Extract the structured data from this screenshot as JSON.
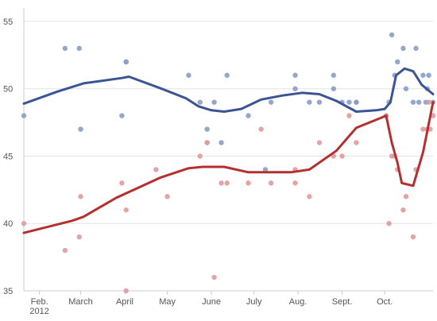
{
  "chart_data": {
    "type": "scatter",
    "title": "",
    "xlabel": "",
    "ylabel": "",
    "ylim": [
      35,
      56
    ],
    "xlim": [
      "2012-01-21",
      "2012-11-04"
    ],
    "grid": true,
    "legend": "none",
    "y_ticks": [
      "35",
      "40",
      "45",
      "50",
      "55"
    ],
    "x_ticks": [
      {
        "date": "2012-02-01",
        "label": "Feb.",
        "sub": "2012"
      },
      {
        "date": "2012-03-01",
        "label": "March",
        "sub": ""
      },
      {
        "date": "2012-04-01",
        "label": "April",
        "sub": ""
      },
      {
        "date": "2012-05-01",
        "label": "May",
        "sub": ""
      },
      {
        "date": "2012-06-01",
        "label": "June",
        "sub": ""
      },
      {
        "date": "2012-07-01",
        "label": "July",
        "sub": ""
      },
      {
        "date": "2012-08-01",
        "label": "Aug.",
        "sub": ""
      },
      {
        "date": "2012-09-01",
        "label": "Sept.",
        "sub": ""
      },
      {
        "date": "2012-10-01",
        "label": "Oct.",
        "sub": ""
      }
    ],
    "series": [
      {
        "color": "#3a5496",
        "point_color": "#8a9cc9",
        "trend": [
          [
            "2012-01-21",
            48.9
          ],
          [
            "2012-02-14",
            49.8
          ],
          [
            "2012-03-03",
            50.4
          ],
          [
            "2012-03-30",
            50.8
          ],
          [
            "2012-04-04",
            50.9
          ],
          [
            "2012-04-27",
            50.0
          ],
          [
            "2012-05-14",
            49.3
          ],
          [
            "2012-05-23",
            48.7
          ],
          [
            "2012-06-01",
            48.4
          ],
          [
            "2012-06-10",
            48.3
          ],
          [
            "2012-06-22",
            48.5
          ],
          [
            "2012-07-06",
            49.2
          ],
          [
            "2012-07-21",
            49.5
          ],
          [
            "2012-08-04",
            49.7
          ],
          [
            "2012-08-16",
            49.6
          ],
          [
            "2012-08-28",
            49.1
          ],
          [
            "2012-09-11",
            48.3
          ],
          [
            "2012-09-25",
            48.4
          ],
          [
            "2012-10-01",
            48.5
          ],
          [
            "2012-10-05",
            49.0
          ],
          [
            "2012-10-09",
            51.0
          ],
          [
            "2012-10-15",
            51.5
          ],
          [
            "2012-10-21",
            51.3
          ],
          [
            "2012-10-27",
            50.3
          ],
          [
            "2012-11-04",
            49.6
          ]
        ],
        "points": [
          [
            "2012-01-21",
            48
          ],
          [
            "2012-02-19",
            53
          ],
          [
            "2012-03-01",
            47
          ],
          [
            "2012-02-29",
            53
          ],
          [
            "2012-03-30",
            48
          ],
          [
            "2012-04-02",
            52
          ],
          [
            "2012-04-02",
            52
          ],
          [
            "2012-05-16",
            51
          ],
          [
            "2012-05-24",
            49
          ],
          [
            "2012-05-29",
            46
          ],
          [
            "2012-05-29",
            47
          ],
          [
            "2012-06-03",
            49
          ],
          [
            "2012-06-08",
            46
          ],
          [
            "2012-06-12",
            51
          ],
          [
            "2012-06-27",
            48
          ],
          [
            "2012-07-09",
            44
          ],
          [
            "2012-07-13",
            49
          ],
          [
            "2012-07-30",
            51
          ],
          [
            "2012-07-30",
            50
          ],
          [
            "2012-08-09",
            49
          ],
          [
            "2012-08-16",
            49
          ],
          [
            "2012-08-26",
            50
          ],
          [
            "2012-08-26",
            51
          ],
          [
            "2012-09-01",
            49
          ],
          [
            "2012-09-06",
            49
          ],
          [
            "2012-09-11",
            49
          ],
          [
            "2012-09-11",
            49
          ],
          [
            "2012-10-02",
            48
          ],
          [
            "2012-10-04",
            49
          ],
          [
            "2012-10-06",
            54
          ],
          [
            "2012-10-08",
            51
          ],
          [
            "2012-10-10",
            52
          ],
          [
            "2012-10-14",
            53
          ],
          [
            "2012-10-16",
            50
          ],
          [
            "2012-10-21",
            49
          ],
          [
            "2012-10-23",
            53
          ],
          [
            "2012-10-28",
            51
          ],
          [
            "2012-10-31",
            50
          ],
          [
            "2012-11-01",
            51
          ],
          [
            "2012-11-04",
            49
          ],
          [
            "2012-10-30",
            49
          ],
          [
            "2012-10-25",
            49
          ]
        ]
      },
      {
        "color": "#b52f2f",
        "point_color": "#e09a9a",
        "trend": [
          [
            "2012-01-21",
            39.3
          ],
          [
            "2012-02-24",
            40.2
          ],
          [
            "2012-03-03",
            40.5
          ],
          [
            "2012-03-26",
            41.9
          ],
          [
            "2012-04-26",
            43.4
          ],
          [
            "2012-05-16",
            44.1
          ],
          [
            "2012-05-26",
            44.2
          ],
          [
            "2012-06-10",
            44.2
          ],
          [
            "2012-06-27",
            43.8
          ],
          [
            "2012-07-27",
            43.8
          ],
          [
            "2012-08-09",
            44.0
          ],
          [
            "2012-08-28",
            45.4
          ],
          [
            "2012-09-11",
            47.1
          ],
          [
            "2012-10-02",
            48.0
          ],
          [
            "2012-10-06",
            46.0
          ],
          [
            "2012-10-10",
            44.5
          ],
          [
            "2012-10-13",
            43.0
          ],
          [
            "2012-10-21",
            42.8
          ],
          [
            "2012-10-28",
            45.3
          ],
          [
            "2012-11-04",
            49.0
          ]
        ],
        "points": [
          [
            "2012-01-21",
            40
          ],
          [
            "2012-02-19",
            38
          ],
          [
            "2012-02-29",
            39
          ],
          [
            "2012-03-01",
            42
          ],
          [
            "2012-03-30",
            43
          ],
          [
            "2012-04-02",
            41
          ],
          [
            "2012-04-02",
            35
          ],
          [
            "2012-04-23",
            44
          ],
          [
            "2012-05-01",
            42
          ],
          [
            "2012-05-24",
            45
          ],
          [
            "2012-05-29",
            46
          ],
          [
            "2012-06-03",
            36
          ],
          [
            "2012-06-08",
            43
          ],
          [
            "2012-06-12",
            43
          ],
          [
            "2012-06-27",
            43
          ],
          [
            "2012-07-06",
            47
          ],
          [
            "2012-07-13",
            43
          ],
          [
            "2012-07-30",
            44
          ],
          [
            "2012-07-30",
            43
          ],
          [
            "2012-08-09",
            42
          ],
          [
            "2012-08-16",
            46
          ],
          [
            "2012-08-26",
            45
          ],
          [
            "2012-09-01",
            45
          ],
          [
            "2012-09-06",
            48
          ],
          [
            "2012-09-11",
            46
          ],
          [
            "2012-10-02",
            48
          ],
          [
            "2012-10-04",
            40
          ],
          [
            "2012-10-06",
            45
          ],
          [
            "2012-10-08",
            45
          ],
          [
            "2012-10-10",
            44
          ],
          [
            "2012-10-14",
            41
          ],
          [
            "2012-10-16",
            42
          ],
          [
            "2012-10-21",
            39
          ],
          [
            "2012-10-23",
            44
          ],
          [
            "2012-10-28",
            47
          ],
          [
            "2012-10-31",
            47
          ],
          [
            "2012-11-01",
            49
          ],
          [
            "2012-11-04",
            48
          ],
          [
            "2012-11-02",
            47
          ]
        ]
      }
    ]
  }
}
